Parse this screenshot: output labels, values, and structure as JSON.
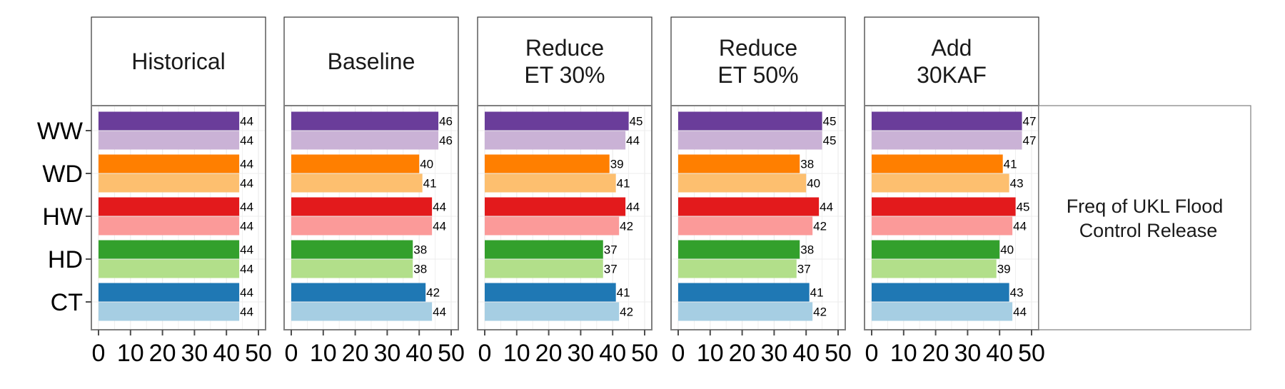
{
  "chart_data": {
    "type": "bar",
    "orientation": "horizontal",
    "facet_row_label": [
      "Freq of UKL Flood",
      "Control Release"
    ],
    "panels": [
      "Historical",
      "Baseline",
      "Reduce\nET 30%",
      "Reduce\nET 50%",
      "Add\n30KAF"
    ],
    "categories": [
      "WW",
      "WD",
      "HW",
      "HD",
      "CT"
    ],
    "x_ticks": [
      "0",
      "10",
      "20",
      "30",
      "40",
      "50"
    ],
    "xlim": [
      0,
      50
    ],
    "colors": {
      "WW": [
        "#6a3d9a",
        "#cab2d6"
      ],
      "WD": [
        "#ff7f00",
        "#fdbf6f"
      ],
      "HW": [
        "#e31a1c",
        "#fb9a99"
      ],
      "HD": [
        "#33a02c",
        "#b2df8a"
      ],
      "CT": [
        "#1f78b4",
        "#a6cee3"
      ]
    },
    "values": [
      {
        "panel": "Historical",
        "WW": [
          44,
          44
        ],
        "WD": [
          44,
          44
        ],
        "HW": [
          44,
          44
        ],
        "HD": [
          44,
          44
        ],
        "CT": [
          44,
          44
        ]
      },
      {
        "panel": "Baseline",
        "WW": [
          46,
          46
        ],
        "WD": [
          40,
          41
        ],
        "HW": [
          44,
          44
        ],
        "HD": [
          38,
          38
        ],
        "CT": [
          42,
          44
        ]
      },
      {
        "panel": "Reduce ET 30%",
        "WW": [
          45,
          44
        ],
        "WD": [
          39,
          41
        ],
        "HW": [
          44,
          42
        ],
        "HD": [
          37,
          37
        ],
        "CT": [
          41,
          42
        ]
      },
      {
        "panel": "Reduce ET 50%",
        "WW": [
          45,
          45
        ],
        "WD": [
          38,
          40
        ],
        "HW": [
          44,
          42
        ],
        "HD": [
          38,
          37
        ],
        "CT": [
          41,
          42
        ]
      },
      {
        "panel": "Add 30KAF",
        "WW": [
          47,
          47
        ],
        "WD": [
          41,
          43
        ],
        "HW": [
          45,
          44
        ],
        "HD": [
          40,
          39
        ],
        "CT": [
          43,
          44
        ]
      }
    ],
    "grid": true,
    "legend": "none"
  }
}
